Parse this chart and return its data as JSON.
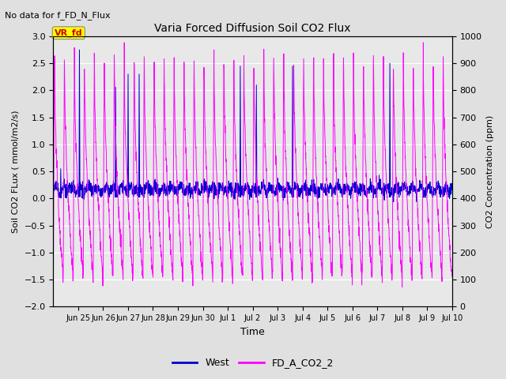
{
  "title": "Varia Forced Diffusion Soil CO2 Flux",
  "subtitle": "No data for f_FD_N_Flux",
  "xlabel": "Time",
  "ylabel_left": "Soil CO2 Flux (mmol/m2/s)",
  "ylabel_right": "CO2 Concentration (ppm)",
  "ylim_left": [
    -2.0,
    3.0
  ],
  "ylim_right": [
    0,
    1000
  ],
  "xtick_labels": [
    "Jun 25",
    "Jun 26",
    "Jun 27",
    "Jun 28",
    "Jun 29",
    "Jun 30",
    "Jul 1",
    "Jul 2",
    "Jul 3",
    "Jul 4",
    "Jul 5",
    "Jul 6",
    "Jul 7",
    "Jul 8",
    "Jul 9",
    "Jul 10"
  ],
  "fig_bg_color": "#e0e0e0",
  "plot_bg_color": "#e8e8e8",
  "west_color": "#0000cd",
  "co2_color": "#ff00ff",
  "legend_entries": [
    "West",
    "FD_A_CO2_2"
  ],
  "vr_fd_label": "VR_fd",
  "vr_fd_box_color": "#ffff00",
  "vr_fd_text_color": "#cc0000",
  "grid_color": "#ffffff"
}
